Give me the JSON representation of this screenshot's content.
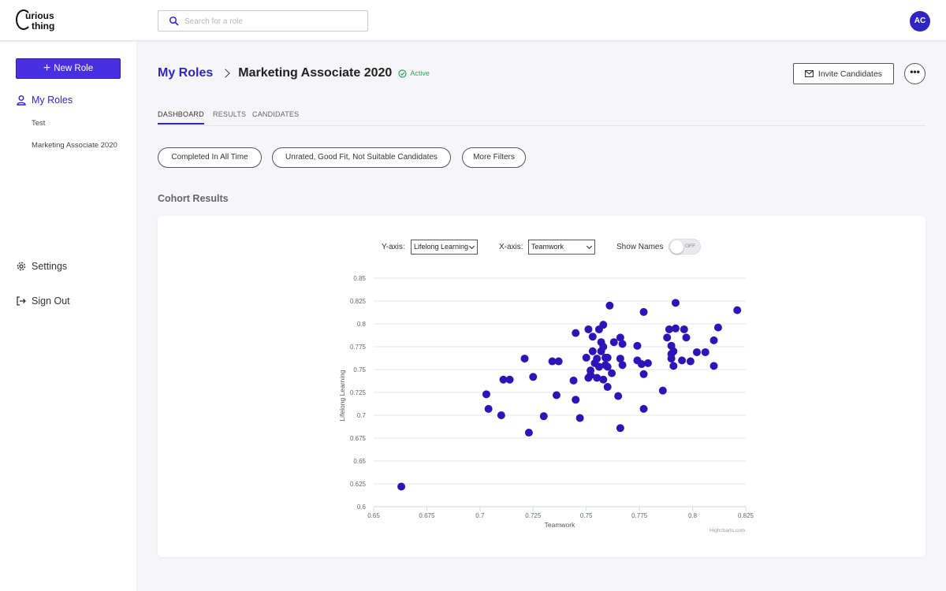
{
  "brand": {
    "logo_line1": "urious",
    "logo_line2": "thing"
  },
  "search": {
    "placeholder": "Search for a role"
  },
  "user": {
    "initials": "AC"
  },
  "sidebar": {
    "new_role_label": "New Role",
    "my_roles_label": "My Roles",
    "roles": [
      "Test",
      "Marketing Associate 2020"
    ],
    "settings_label": "Settings",
    "sign_out_label": "Sign Out"
  },
  "header": {
    "breadcrumb_root": "My Roles",
    "role_title": "Marketing Associate 2020",
    "status": "Active",
    "invite_label": "Invite Candidates",
    "more_label": "•••"
  },
  "tabs": [
    {
      "label": "DASHBOARD",
      "active": true
    },
    {
      "label": "RESULTS",
      "active": false
    },
    {
      "label": "CANDIDATES",
      "active": false
    }
  ],
  "filters": [
    "Completed In All Time",
    "Unrated, Good Fit, Not Suitable Candidates",
    "More Filters"
  ],
  "section_title": "Cohort Results",
  "controls": {
    "y_axis_label": "Y-axis:",
    "y_axis_value": "Lifelong Learning",
    "x_axis_label": "X-axis:",
    "x_axis_value": "Teamwork",
    "show_names_label": "Show Names",
    "show_names_state": "OFF"
  },
  "colors": {
    "accent": "#2f24c4",
    "point": "#2e14b8",
    "active": "#2fa55a"
  },
  "credit": "Highcharts.com",
  "chart_data": {
    "type": "scatter",
    "xlabel": "Teamwork",
    "ylabel": "Lifelong Learning",
    "xlim": [
      0.65,
      0.825
    ],
    "ylim": [
      0.6,
      0.85
    ],
    "x_ticks": [
      "0.65",
      "0.675",
      "0.7",
      "0.725",
      "0.75",
      "0.775",
      "0.8",
      "0.825"
    ],
    "y_ticks": [
      "0.6",
      "0.625",
      "0.65",
      "0.675",
      "0.7",
      "0.725",
      "0.75",
      "0.775",
      "0.8",
      "0.825",
      "0.85"
    ],
    "grid": true,
    "series": [
      {
        "points": [
          [
            0.663,
            0.622
          ],
          [
            0.703,
            0.723
          ],
          [
            0.704,
            0.707
          ],
          [
            0.71,
            0.7
          ],
          [
            0.711,
            0.739
          ],
          [
            0.714,
            0.739
          ],
          [
            0.721,
            0.762
          ],
          [
            0.723,
            0.681
          ],
          [
            0.725,
            0.742
          ],
          [
            0.73,
            0.699
          ],
          [
            0.734,
            0.759
          ],
          [
            0.736,
            0.722
          ],
          [
            0.737,
            0.759
          ],
          [
            0.744,
            0.738
          ],
          [
            0.745,
            0.717
          ],
          [
            0.745,
            0.79
          ],
          [
            0.747,
            0.697
          ],
          [
            0.75,
            0.763
          ],
          [
            0.751,
            0.741
          ],
          [
            0.751,
            0.794
          ],
          [
            0.752,
            0.749
          ],
          [
            0.752,
            0.744
          ],
          [
            0.753,
            0.786
          ],
          [
            0.753,
            0.77
          ],
          [
            0.754,
            0.757
          ],
          [
            0.755,
            0.741
          ],
          [
            0.755,
            0.762
          ],
          [
            0.756,
            0.794
          ],
          [
            0.756,
            0.753
          ],
          [
            0.757,
            0.78
          ],
          [
            0.757,
            0.77
          ],
          [
            0.758,
            0.799
          ],
          [
            0.758,
            0.739
          ],
          [
            0.758,
            0.775
          ],
          [
            0.759,
            0.755
          ],
          [
            0.759,
            0.763
          ],
          [
            0.76,
            0.731
          ],
          [
            0.76,
            0.753
          ],
          [
            0.76,
            0.763
          ],
          [
            0.761,
            0.82
          ],
          [
            0.762,
            0.746
          ],
          [
            0.763,
            0.78
          ],
          [
            0.765,
            0.721
          ],
          [
            0.766,
            0.785
          ],
          [
            0.766,
            0.762
          ],
          [
            0.766,
            0.686
          ],
          [
            0.767,
            0.755
          ],
          [
            0.767,
            0.778
          ],
          [
            0.774,
            0.776
          ],
          [
            0.774,
            0.76
          ],
          [
            0.776,
            0.756
          ],
          [
            0.777,
            0.745
          ],
          [
            0.777,
            0.813
          ],
          [
            0.777,
            0.707
          ],
          [
            0.779,
            0.757
          ],
          [
            0.786,
            0.727
          ],
          [
            0.788,
            0.785
          ],
          [
            0.789,
            0.794
          ],
          [
            0.79,
            0.762
          ],
          [
            0.79,
            0.767
          ],
          [
            0.79,
            0.776
          ],
          [
            0.791,
            0.77
          ],
          [
            0.791,
            0.754
          ],
          [
            0.792,
            0.823
          ],
          [
            0.792,
            0.795
          ],
          [
            0.795,
            0.76
          ],
          [
            0.796,
            0.794
          ],
          [
            0.797,
            0.785
          ],
          [
            0.799,
            0.759
          ],
          [
            0.802,
            0.769
          ],
          [
            0.806,
            0.769
          ],
          [
            0.81,
            0.782
          ],
          [
            0.81,
            0.754
          ],
          [
            0.812,
            0.796
          ],
          [
            0.821,
            0.815
          ]
        ]
      }
    ]
  }
}
